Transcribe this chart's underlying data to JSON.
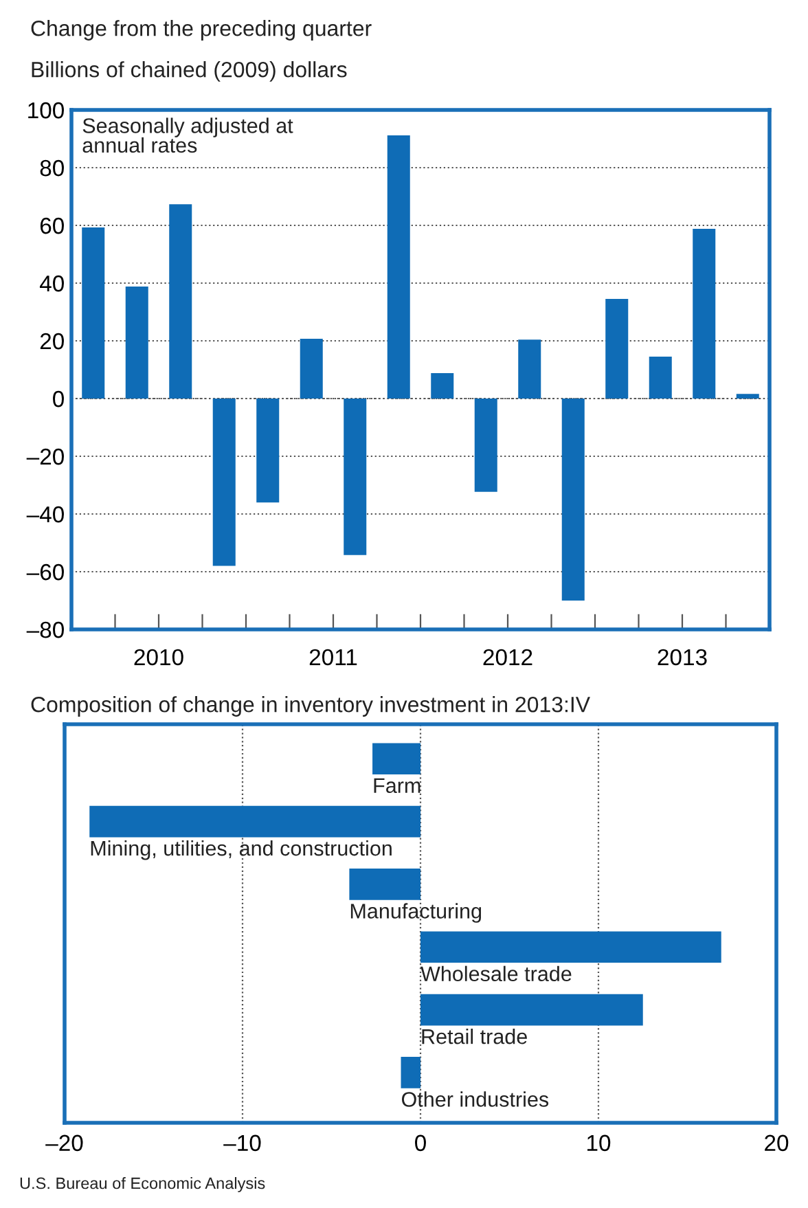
{
  "chart_data": [
    {
      "type": "bar",
      "title": "Change from the preceding quarter",
      "subtitle": "Billions of chained (2009) dollars",
      "x": [
        2010.125,
        2010.375,
        2010.625,
        2010.875,
        2011.125,
        2011.375,
        2011.625,
        2011.875,
        2012.125,
        2012.375,
        2012.625,
        2012.875,
        2013.125,
        2013.375,
        2013.625,
        2013.875
      ],
      "values": [
        59.3,
        38.8,
        67.3,
        -58,
        -36,
        20.7,
        -54.2,
        91.2,
        8.8,
        -32.3,
        20.4,
        -70,
        34.5,
        14.5,
        58.8,
        1.6
      ],
      "color": "#0f6cb6",
      "xlim": [
        2010,
        2014
      ],
      "xticks": [
        {
          "value": 2010.25,
          "label": null
        },
        {
          "value": 2010.5,
          "label": "2010"
        },
        {
          "value": 2010.75,
          "label": null
        },
        {
          "value": 2011,
          "label": null
        },
        {
          "value": 2011.25,
          "label": null
        },
        {
          "value": 2011.5,
          "label": "2011"
        },
        {
          "value": 2011.75,
          "label": null
        },
        {
          "value": 2012,
          "label": null
        },
        {
          "value": 2012.25,
          "label": null
        },
        {
          "value": 2012.5,
          "label": "2012"
        },
        {
          "value": 2012.75,
          "label": null
        },
        {
          "value": 2013,
          "label": null
        },
        {
          "value": 2013.25,
          "label": null
        },
        {
          "value": 2013.5,
          "label": "2013"
        },
        {
          "value": 2013.75,
          "label": null
        }
      ],
      "ylim": [
        -80,
        100
      ],
      "yticks": [
        {
          "value": -80,
          "label": "–80"
        },
        {
          "value": -60,
          "label": "–60"
        },
        {
          "value": -40,
          "label": "–40"
        },
        {
          "value": -20,
          "label": "–20"
        },
        0,
        20,
        40,
        60,
        80,
        100
      ],
      "grid": "y",
      "annotations": [
        "Seasonally adjusted at\nannual rates"
      ]
    },
    {
      "type": "bar",
      "orientation": "horizontal",
      "title": "Composition of change in inventory investment in 2013:IV",
      "categories": [
        "Farm",
        "Mining, utilities, and construction",
        "Manufacturing",
        "Wholesale trade",
        "Retail trade",
        "Other industries"
      ],
      "values": [
        -2.7,
        -18.6,
        -4.0,
        16.9,
        12.5,
        -1.1
      ],
      "color": "#0f6cb6",
      "xlim": [
        -20,
        20
      ],
      "xticks": [
        {
          "value": -20,
          "label": "–20"
        },
        {
          "value": -10,
          "label": "–10"
        },
        0,
        10,
        20
      ],
      "grid": "x",
      "tick_labels": "x",
      "annotations": [
        "U.S. Bureau of Economic Analysis"
      ]
    }
  ]
}
